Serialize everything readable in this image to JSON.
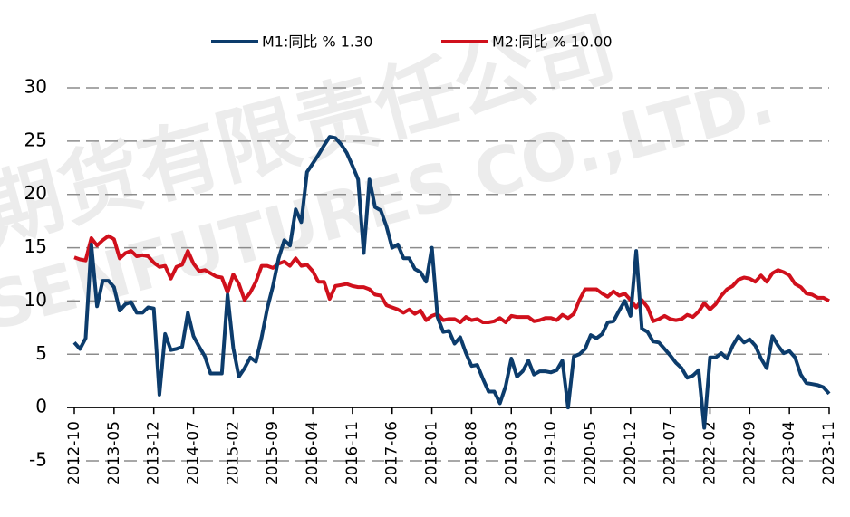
{
  "chart_data": {
    "type": "line",
    "watermark": [
      "期货有限责任公司",
      "SENFUTURES CO.,LTD."
    ],
    "categories": [
      "2012-10",
      null,
      null,
      null,
      null,
      null,
      null,
      "2013-05",
      null,
      null,
      null,
      null,
      null,
      null,
      "2013-12",
      null,
      null,
      null,
      null,
      null,
      null,
      "2014-07",
      null,
      null,
      null,
      null,
      null,
      null,
      "2015-02",
      null,
      null,
      null,
      null,
      null,
      null,
      "2015-09",
      null,
      null,
      null,
      null,
      null,
      null,
      "2016-04",
      null,
      null,
      null,
      null,
      null,
      null,
      "2016-11",
      null,
      null,
      null,
      null,
      null,
      null,
      "2017-06",
      null,
      null,
      null,
      null,
      null,
      null,
      "2018-01",
      null,
      null,
      null,
      null,
      null,
      null,
      "2018-08",
      null,
      null,
      null,
      null,
      null,
      null,
      "2019-03",
      null,
      null,
      null,
      null,
      null,
      null,
      "2019-10",
      null,
      null,
      null,
      null,
      null,
      null,
      "2020-05",
      null,
      null,
      null,
      null,
      null,
      null,
      "2020-12",
      null,
      null,
      null,
      null,
      null,
      null,
      "2021-07",
      null,
      null,
      null,
      null,
      null,
      null,
      "2022-02",
      null,
      null,
      null,
      null,
      null,
      null,
      "2022-09",
      null,
      null,
      null,
      null,
      null,
      null,
      "2023-04",
      null,
      null,
      null,
      null,
      null,
      null,
      "2023-11"
    ],
    "series": [
      {
        "name": "M1:同比 % 1.30",
        "color": "#0c3c6c",
        "values": [
          6.1,
          5.5,
          6.5,
          15.3,
          9.5,
          11.9,
          11.9,
          11.3,
          9.1,
          9.7,
          9.9,
          8.9,
          8.9,
          9.4,
          9.3,
          1.2,
          6.9,
          5.4,
          5.5,
          5.7,
          8.9,
          6.7,
          5.7,
          4.8,
          3.2,
          3.2,
          3.2,
          10.6,
          5.6,
          2.9,
          3.7,
          4.7,
          4.3,
          6.6,
          9.3,
          11.4,
          14.0,
          15.7,
          15.2,
          18.6,
          17.4,
          22.1,
          22.9,
          23.7,
          24.6,
          25.4,
          25.3,
          24.7,
          23.9,
          22.7,
          21.4,
          14.5,
          21.4,
          18.8,
          18.5,
          17.0,
          15.0,
          15.3,
          14.0,
          14.0,
          13.0,
          12.7,
          11.8,
          15.0,
          8.5,
          7.1,
          7.2,
          6.0,
          6.6,
          5.1,
          3.9,
          4.0,
          2.7,
          1.5,
          1.5,
          0.4,
          2.0,
          4.6,
          2.9,
          3.4,
          4.4,
          3.1,
          3.4,
          3.4,
          3.3,
          3.5,
          4.4,
          0.0,
          4.8,
          5.0,
          5.5,
          6.8,
          6.5,
          6.9,
          8.0,
          8.1,
          9.1,
          10.0,
          8.6,
          14.7,
          7.4,
          7.1,
          6.2,
          6.1,
          5.5,
          4.9,
          4.2,
          3.7,
          2.8,
          3.0,
          3.5,
          -1.9,
          4.7,
          4.7,
          5.1,
          4.6,
          5.8,
          6.7,
          6.1,
          6.4,
          5.8,
          4.6,
          3.7,
          6.7,
          5.8,
          5.1,
          5.3,
          4.7,
          3.1,
          2.3,
          2.2,
          2.1,
          1.9,
          1.3
        ]
      },
      {
        "name": "M2:同比 % 10.00",
        "color": "#d0101c",
        "values": [
          14.1,
          13.9,
          13.8,
          15.9,
          15.2,
          15.7,
          16.1,
          15.8,
          14.0,
          14.5,
          14.7,
          14.2,
          14.3,
          14.2,
          13.6,
          13.2,
          13.3,
          12.1,
          13.2,
          13.4,
          14.7,
          13.5,
          12.8,
          12.9,
          12.6,
          12.3,
          12.2,
          10.8,
          12.5,
          11.6,
          10.1,
          10.8,
          11.8,
          13.3,
          13.3,
          13.1,
          13.5,
          13.7,
          13.3,
          14.0,
          13.3,
          13.4,
          12.8,
          11.8,
          11.8,
          10.2,
          11.4,
          11.5,
          11.6,
          11.4,
          11.3,
          11.3,
          11.1,
          10.6,
          10.5,
          9.6,
          9.4,
          9.2,
          8.9,
          9.2,
          8.8,
          9.1,
          8.2,
          8.6,
          8.8,
          8.2,
          8.3,
          8.3,
          8.0,
          8.5,
          8.2,
          8.3,
          8.0,
          8.0,
          8.1,
          8.4,
          8.0,
          8.6,
          8.5,
          8.5,
          8.5,
          8.1,
          8.2,
          8.4,
          8.4,
          8.2,
          8.7,
          8.4,
          8.8,
          10.1,
          11.1,
          11.1,
          11.1,
          10.7,
          10.4,
          10.9,
          10.5,
          10.7,
          10.1,
          9.4,
          10.1,
          9.4,
          8.1,
          8.3,
          8.6,
          8.3,
          8.2,
          8.3,
          8.7,
          8.5,
          9.0,
          9.8,
          9.2,
          9.7,
          10.5,
          11.1,
          11.4,
          12.0,
          12.2,
          12.1,
          11.8,
          12.4,
          11.8,
          12.6,
          12.9,
          12.7,
          12.4,
          11.6,
          11.3,
          10.7,
          10.6,
          10.3,
          10.3,
          10.0
        ]
      }
    ],
    "ylim": [
      -5,
      30
    ],
    "yticks": [
      -5,
      0,
      5,
      10,
      15,
      20,
      25,
      30
    ],
    "grid": true,
    "legend": "top"
  }
}
